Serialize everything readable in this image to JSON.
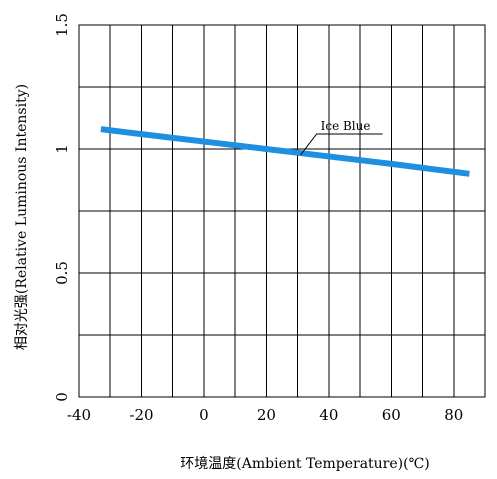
{
  "chart_data": {
    "type": "line",
    "title": "",
    "xlabel": "环境温度(Ambient Temperature)(℃)",
    "ylabel": "相对光强(Relative Luminous Intensity)",
    "xlim": [
      -40,
      90
    ],
    "ylim": [
      0,
      1.5
    ],
    "grid": true,
    "x_ticks": [
      "-40",
      "-20",
      "0",
      "20",
      "40",
      "60",
      "80"
    ],
    "y_ticks": [
      "0",
      "0.5",
      "1",
      "1.5"
    ],
    "x_tick_values": [
      -40,
      -20,
      0,
      20,
      40,
      60,
      80
    ],
    "y_tick_values": [
      0,
      0.5,
      1,
      1.5
    ],
    "series": [
      {
        "name": "Ice Blue",
        "color": "#1f8fe0",
        "x": [
          -33,
          -20,
          0,
          20,
          40,
          60,
          85
        ],
        "y": [
          1.08,
          1.06,
          1.03,
          1.0,
          0.97,
          0.94,
          0.9
        ]
      }
    ],
    "annotations": [
      {
        "text": "Ice Blue",
        "x": 30,
        "y": 0.98
      }
    ]
  }
}
